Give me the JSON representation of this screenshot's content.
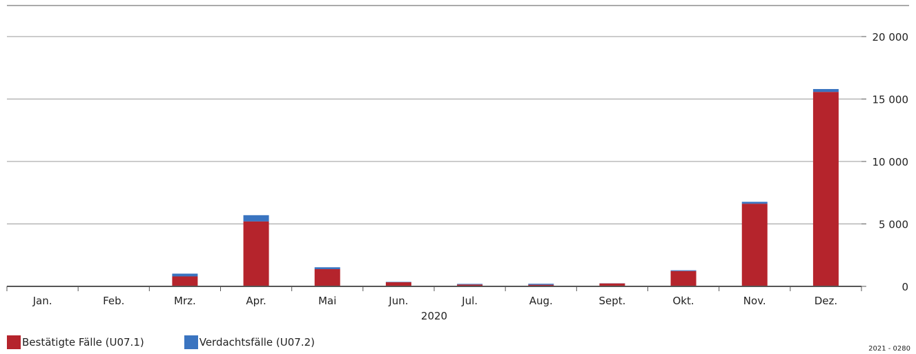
{
  "chart_data": {
    "type": "bar",
    "stacked": true,
    "categories": [
      "Jan.",
      "Feb.",
      "Mrz.",
      "Apr.",
      "Mai",
      "Jun.",
      "Jul.",
      "Aug.",
      "Sept.",
      "Okt.",
      "Nov.",
      "Dez."
    ],
    "x_group_label": "2020",
    "series": [
      {
        "name": "Bestätigte Fälle (U07.1)",
        "color": "#b5242c",
        "values": [
          0,
          40,
          800,
          5200,
          1380,
          330,
          150,
          130,
          240,
          1230,
          6620,
          15570
        ]
      },
      {
        "name": "Verdachtsfälle (U07.2)",
        "color": "#3a74c0",
        "values": [
          0,
          10,
          220,
          500,
          150,
          30,
          50,
          80,
          10,
          60,
          150,
          230
        ]
      }
    ],
    "yticks": [
      "0",
      "5 000",
      "10 000",
      "15 000",
      "20 000"
    ],
    "ylim": [
      0,
      22000
    ],
    "y_axis_position": "right",
    "grid": true,
    "legend_position": "bottom-left"
  },
  "source_code": "2021 - 0280"
}
